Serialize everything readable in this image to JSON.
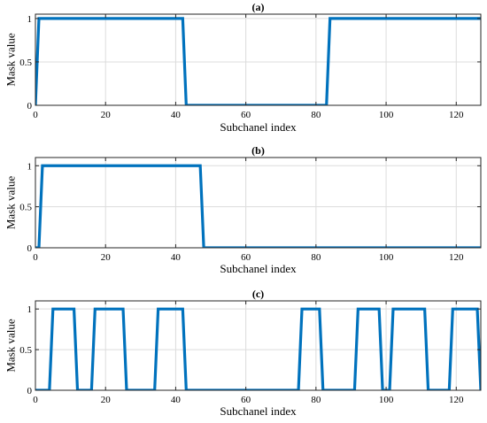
{
  "chart_data": [
    {
      "type": "line",
      "title": "(a)",
      "xlabel": "Subchanel index",
      "ylabel": "Mask value",
      "xlim": [
        0,
        127
      ],
      "ylim": [
        0,
        1.05
      ],
      "xticks": [
        0,
        20,
        40,
        60,
        80,
        100,
        120
      ],
      "yticks": [
        0,
        0.5,
        1
      ],
      "ytick_labels": [
        "0",
        "0.5",
        "1"
      ],
      "grid": true,
      "color": "#0072BD",
      "series": [
        {
          "x": [
            0,
            1,
            42,
            43,
            83,
            84,
            127
          ],
          "y": [
            0,
            1,
            1,
            0,
            0,
            1,
            1
          ]
        }
      ]
    },
    {
      "type": "line",
      "title": "(b)",
      "xlabel": "Subchanel index",
      "ylabel": "Mask value",
      "xlim": [
        0,
        127
      ],
      "ylim": [
        0,
        1.1
      ],
      "xticks": [
        0,
        20,
        40,
        60,
        80,
        100,
        120
      ],
      "yticks": [
        0,
        0.5,
        1
      ],
      "ytick_labels": [
        "0",
        "0.5",
        "1"
      ],
      "grid": true,
      "color": "#0072BD",
      "series": [
        {
          "x": [
            0,
            1,
            2,
            47,
            48,
            127
          ],
          "y": [
            0,
            0,
            1,
            1,
            0,
            0
          ]
        }
      ]
    },
    {
      "type": "line",
      "title": "(c)",
      "xlabel": "Subchanel index",
      "ylabel": "Mask value",
      "xlim": [
        0,
        127
      ],
      "ylim": [
        0,
        1.1
      ],
      "xticks": [
        0,
        20,
        40,
        60,
        80,
        100,
        120
      ],
      "yticks": [
        0,
        0.5,
        1
      ],
      "ytick_labels": [
        "0",
        "0.5",
        "1"
      ],
      "grid": true,
      "color": "#0072BD",
      "series": [
        {
          "x": [
            0,
            4,
            5,
            11,
            12,
            16,
            17,
            25,
            26,
            34,
            35,
            42,
            43,
            75,
            76,
            81,
            82,
            91,
            92,
            98,
            99,
            101,
            102,
            111,
            112,
            118,
            119,
            126,
            127
          ],
          "y": [
            0,
            0,
            1,
            1,
            0,
            0,
            1,
            1,
            0,
            0,
            1,
            1,
            0,
            0,
            1,
            1,
            0,
            0,
            1,
            1,
            0,
            0,
            1,
            1,
            0,
            0,
            1,
            1,
            0
          ]
        }
      ]
    }
  ]
}
